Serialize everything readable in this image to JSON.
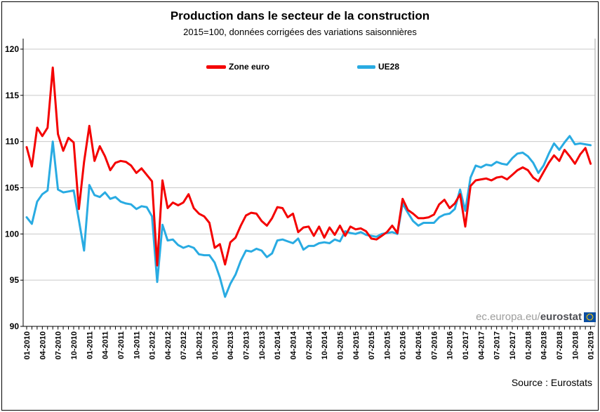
{
  "header": {
    "title": "Production dans le secteur de la construction",
    "subtitle": "2015=100, données corrigées des variations saisonnières"
  },
  "legend": [
    {
      "label": "Zone euro",
      "color": "#f40000"
    },
    {
      "label": "UE28",
      "color": "#29abe2"
    }
  ],
  "watermark": {
    "prefix": "ec.europa.eu/",
    "bold": "eurostat"
  },
  "source_note": "Source : Eurostats",
  "colors": {
    "zone_euro": "#f40000",
    "ue28": "#29abe2",
    "gridline": "#c9c9c9",
    "axis": "#000000",
    "plot_right_border": "#a6a6a6"
  },
  "chart_data": {
    "type": "line",
    "title": "Production dans le secteur de la construction",
    "subtitle": "2015=100, données corrigées des variations saisonnières",
    "x_unit": "month",
    "x_start": "01-2010",
    "x_end": "01-2019",
    "x_tick_labels": [
      "01-2010",
      "04-2010",
      "07-2010",
      "10-2010",
      "01-2011",
      "04-2011",
      "07-2011",
      "10-2011",
      "01-2012",
      "04-2012",
      "07-2012",
      "10-2012",
      "01-2013",
      "04-2013",
      "07-2013",
      "10-2013",
      "01-2014",
      "04-2014",
      "07-2014",
      "10-2014",
      "01-2015",
      "04-2015",
      "07-2015",
      "10-2015",
      "01-2016",
      "04-2016",
      "07-2016",
      "10-2016",
      "01-2017",
      "04-2017",
      "07-2017",
      "10-2017",
      "01-2018",
      "04-2018",
      "07-2018",
      "10-2018",
      "01-2019"
    ],
    "ylim": [
      90,
      120
    ],
    "y_ticks": [
      90,
      95,
      100,
      105,
      110,
      115,
      120
    ],
    "grid": "horizontal",
    "legend_position": "top-inside",
    "series": [
      {
        "name": "Zone euro",
        "color": "#f40000",
        "values": [
          109.4,
          107.3,
          111.5,
          110.6,
          111.5,
          118.0,
          110.8,
          109.0,
          110.4,
          109.9,
          102.7,
          107.8,
          111.7,
          107.9,
          109.5,
          108.4,
          106.9,
          107.7,
          107.9,
          107.8,
          107.4,
          106.6,
          107.1,
          106.4,
          105.7,
          96.6,
          105.8,
          102.8,
          103.4,
          103.1,
          103.4,
          104.3,
          102.8,
          102.2,
          101.9,
          101.2,
          98.5,
          98.9,
          96.7,
          99.1,
          99.6,
          100.9,
          102.0,
          102.3,
          102.2,
          101.4,
          100.9,
          101.7,
          102.9,
          102.8,
          101.8,
          102.2,
          100.2,
          100.7,
          100.8,
          99.8,
          100.8,
          99.6,
          100.7,
          99.9,
          100.9,
          99.8,
          100.8,
          100.5,
          100.6,
          100.3,
          99.5,
          99.4,
          99.8,
          100.2,
          100.9,
          100.1,
          103.8,
          102.6,
          102.2,
          101.7,
          101.7,
          101.8,
          102.1,
          103.2,
          103.7,
          102.8,
          103.3,
          104.3,
          100.8,
          105.2,
          105.8,
          105.9,
          106.0,
          105.8,
          106.1,
          106.2,
          105.9,
          106.4,
          106.9,
          107.2,
          106.9,
          106.1,
          105.7,
          106.7,
          107.7,
          108.5,
          107.9,
          109.1,
          108.4,
          107.6,
          108.6,
          109.3,
          107.6
        ]
      },
      {
        "name": "UE28",
        "color": "#29abe2",
        "values": [
          101.8,
          101.1,
          103.5,
          104.3,
          104.7,
          110.0,
          104.8,
          104.5,
          104.6,
          104.7,
          101.5,
          98.2,
          105.3,
          104.2,
          104.0,
          104.5,
          103.8,
          104.0,
          103.5,
          103.3,
          103.2,
          102.7,
          103.0,
          102.9,
          101.9,
          94.8,
          101.0,
          99.3,
          99.4,
          98.8,
          98.5,
          98.7,
          98.5,
          97.8,
          97.7,
          97.7,
          96.9,
          95.3,
          93.2,
          94.6,
          95.6,
          97.1,
          98.2,
          98.1,
          98.4,
          98.2,
          97.5,
          97.9,
          99.3,
          99.4,
          99.2,
          99.0,
          99.5,
          98.3,
          98.7,
          98.7,
          99.0,
          99.1,
          99.0,
          99.4,
          99.2,
          100.3,
          100.1,
          100.0,
          100.2,
          99.9,
          99.8,
          99.7,
          100.0,
          100.1,
          100.2,
          100.0,
          103.3,
          102.3,
          101.4,
          100.9,
          101.2,
          101.2,
          101.2,
          101.8,
          102.1,
          102.2,
          102.7,
          104.8,
          102.5,
          106.1,
          107.4,
          107.2,
          107.5,
          107.4,
          107.8,
          107.6,
          107.5,
          108.2,
          108.7,
          108.8,
          108.4,
          107.7,
          106.6,
          107.4,
          108.7,
          109.8,
          109.1,
          109.9,
          110.6,
          109.7,
          109.8,
          109.7,
          109.6
        ]
      }
    ]
  }
}
